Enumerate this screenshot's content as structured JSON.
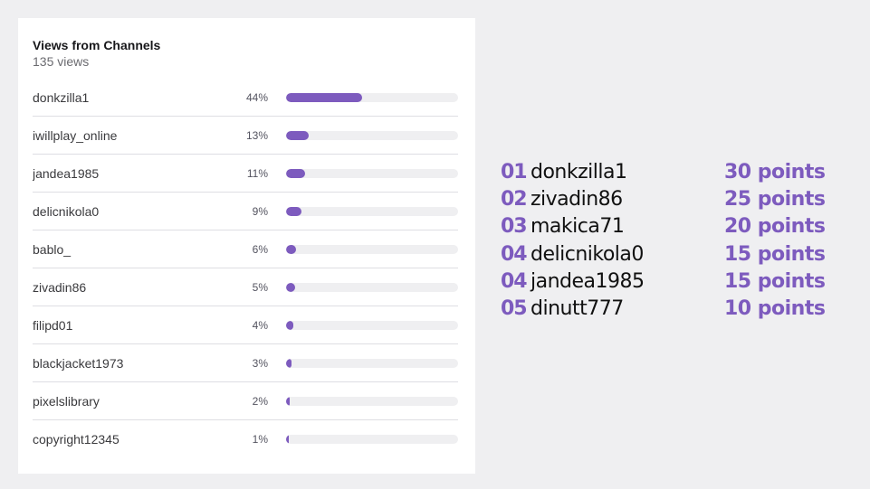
{
  "panel": {
    "title": "Views from Channels",
    "subtitle": "135 views",
    "accent_color": "#7d5bbe",
    "rows": [
      {
        "name": "donkzilla1",
        "pct_label": "44%",
        "value": 44
      },
      {
        "name": "iwillplay_online",
        "pct_label": "13%",
        "value": 13
      },
      {
        "name": "jandea1985",
        "pct_label": "11%",
        "value": 11
      },
      {
        "name": "delicnikola0",
        "pct_label": "9%",
        "value": 9
      },
      {
        "name": "bablo_",
        "pct_label": "6%",
        "value": 6
      },
      {
        "name": "zivadin86",
        "pct_label": "5%",
        "value": 5
      },
      {
        "name": "filipd01",
        "pct_label": "4%",
        "value": 4
      },
      {
        "name": "blackjacket1973",
        "pct_label": "3%",
        "value": 3
      },
      {
        "name": "pixelslibrary",
        "pct_label": "2%",
        "value": 2
      },
      {
        "name": "copyright12345",
        "pct_label": "1%",
        "value": 1
      }
    ]
  },
  "leaderboard": {
    "entries": [
      {
        "rank": "01",
        "name": "donkzilla1",
        "points": "30 points"
      },
      {
        "rank": "02",
        "name": "zivadin86",
        "points": "25 points"
      },
      {
        "rank": "03",
        "name": "makica71",
        "points": "20 points"
      },
      {
        "rank": "04",
        "name": "delicnikola0",
        "points": "15 points"
      },
      {
        "rank": "04",
        "name": "jandea1985",
        "points": "15 points"
      },
      {
        "rank": "05",
        "name": "dinutt777",
        "points": "10 points"
      }
    ]
  }
}
